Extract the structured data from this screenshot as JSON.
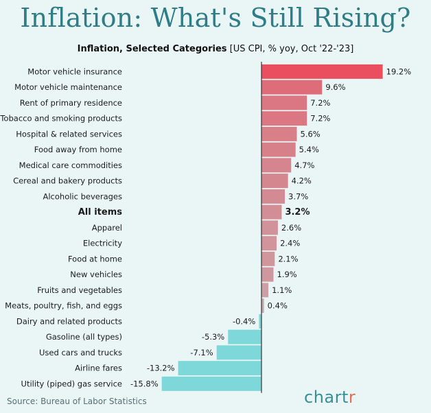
{
  "header": {
    "title": "Inflation: What's Still Rising?",
    "subtitle_bold": "Inflation, Selected Categories",
    "subtitle_rest": "[US CPI, % yoy, Oct '22-'23]"
  },
  "footer": {
    "source": "Source: Bureau of Labor Statistics",
    "brand_main": "chart",
    "brand_accent": "r"
  },
  "colors": {
    "positive_top": "#ea4f5f",
    "neutral": "#c0c0c0",
    "negative": "#7ed8da",
    "background": "#eaf6f6"
  },
  "chart_data": {
    "type": "bar",
    "orientation": "horizontal",
    "title": "Inflation: What's Still Rising?",
    "subtitle": "Inflation, Selected Categories [US CPI, % yoy, Oct '22-'23]",
    "categories": [
      "Motor vehicle insurance",
      "Motor vehicle maintenance",
      "Rent of primary residence",
      "Tobacco and smoking products",
      "Hospital & related services",
      "Food away from home",
      "Medical care commodities",
      "Cereal and bakery products",
      "Alcoholic beverages",
      "All items",
      "Apparel",
      "Electricity",
      "Food at home",
      "New vehicles",
      "Fruits and vegetables",
      "Meats, poultry, fish, and eggs",
      "Dairy and related products",
      "Gasoline (all types)",
      "Used cars and trucks",
      "Airline fares",
      "Utility (piped) gas service"
    ],
    "values": [
      19.2,
      9.6,
      7.2,
      7.2,
      5.6,
      5.4,
      4.7,
      4.2,
      3.7,
      3.2,
      2.6,
      2.4,
      2.1,
      1.9,
      1.1,
      0.4,
      -0.4,
      -5.3,
      -7.1,
      -13.2,
      -15.8
    ],
    "value_labels": [
      "19.2%",
      "9.6%",
      "7.2%",
      "7.2%",
      "5.6%",
      "5.4%",
      "4.7%",
      "4.2%",
      "3.7%",
      "3.2%",
      "2.6%",
      "2.4%",
      "2.1%",
      "1.9%",
      "1.1%",
      "0.4%",
      "-0.4%",
      "-5.3%",
      "-7.1%",
      "-13.2%",
      "-15.8%"
    ],
    "highlight": "All items",
    "xlim": [
      -15.8,
      19.2
    ]
  }
}
